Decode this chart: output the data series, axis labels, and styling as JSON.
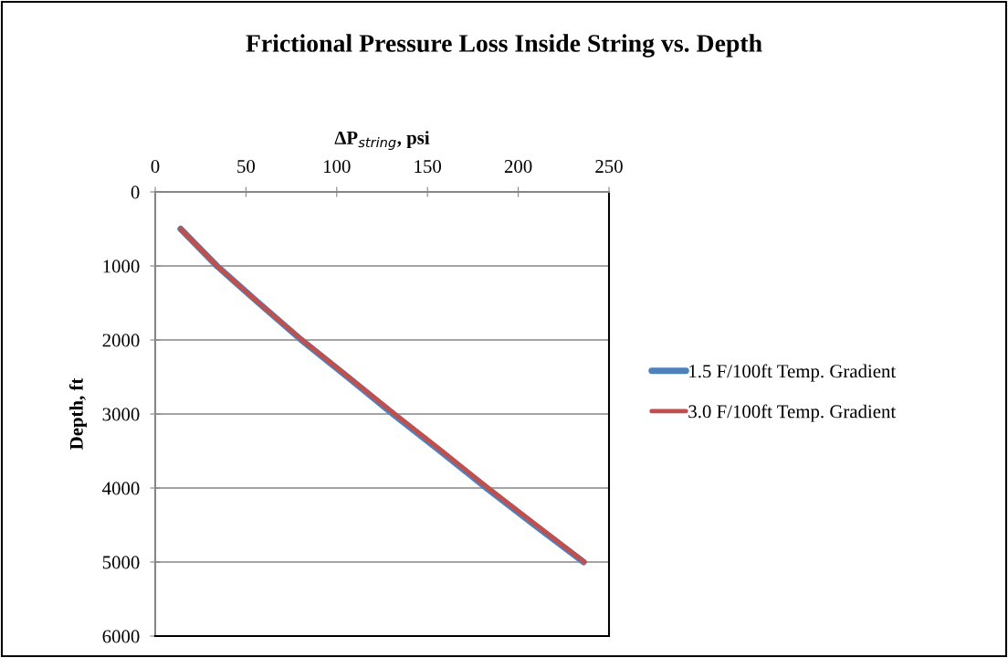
{
  "chart_data": {
    "type": "line",
    "title": "Frictional Pressure Loss Inside String vs. Depth",
    "xlabel": "ΔP$_{string}$, psi",
    "ylabel": "Depth, ft",
    "xlim": [
      0,
      250
    ],
    "xticks": [
      0,
      50,
      100,
      150,
      200,
      250
    ],
    "ylim": [
      6000,
      0
    ],
    "yticks": [
      0,
      1000,
      2000,
      3000,
      4000,
      5000,
      6000
    ],
    "grid": "y",
    "legend": "right",
    "marker": "none",
    "line_style": "solid",
    "series": [
      {
        "name": "1.5 F/100ft Temp. Gradient",
        "color": "#4f81bd",
        "x": [
          14,
          34,
          57,
          80.5,
          106,
          131,
          157,
          182.5,
          209,
          236
        ],
        "values": [
          500,
          1000,
          1500,
          2000,
          2500,
          3000,
          3500,
          4000,
          4500,
          5000
        ]
      },
      {
        "name": "3.0 F/100ft Temp. Gradient",
        "color": "#c0504d",
        "x": [
          14,
          34,
          57,
          81,
          106.5,
          132,
          158,
          183.5,
          210,
          236.5
        ],
        "values": [
          500,
          1000,
          1500,
          2000,
          2500,
          3000,
          3500,
          4000,
          4500,
          5000
        ]
      }
    ]
  }
}
